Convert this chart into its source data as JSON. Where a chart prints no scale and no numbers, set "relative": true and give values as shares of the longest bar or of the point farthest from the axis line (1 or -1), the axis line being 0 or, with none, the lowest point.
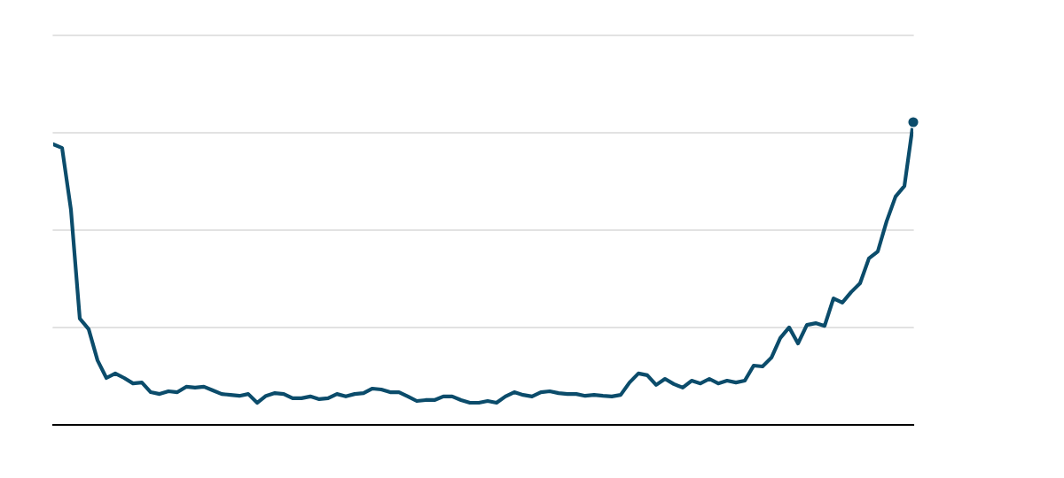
{
  "chart_data": {
    "type": "line",
    "relative": true,
    "categories": [
      null,
      null,
      null,
      null,
      null,
      null,
      null,
      null,
      null,
      null,
      null,
      null,
      null,
      null,
      null,
      null,
      null,
      null,
      null,
      null,
      null,
      null,
      null,
      null,
      null,
      null,
      null,
      null,
      null,
      null,
      null,
      null,
      null,
      null,
      null,
      null,
      null,
      null,
      null,
      null,
      null,
      null,
      null,
      null,
      null,
      null,
      null,
      null,
      null,
      null,
      null,
      null,
      null,
      null,
      null,
      null,
      null,
      null,
      null,
      null,
      null,
      null,
      null,
      null,
      null,
      null,
      null,
      null,
      null,
      null,
      null,
      null,
      null,
      null,
      null,
      null,
      null,
      null,
      null,
      null,
      null,
      null,
      null,
      null,
      null,
      null,
      null,
      null,
      null,
      null,
      null,
      null,
      null,
      null,
      null,
      null,
      null,
      null
    ],
    "grid": "y",
    "series": [
      {
        "color": "#0b4c6b",
        "values": [
          0.927,
          0.915,
          0.711,
          0.351,
          0.316,
          0.213,
          0.155,
          0.17,
          0.155,
          0.137,
          0.14,
          0.108,
          0.102,
          0.111,
          0.108,
          0.126,
          0.123,
          0.126,
          0.114,
          0.102,
          0.099,
          0.096,
          0.102,
          0.073,
          0.096,
          0.105,
          0.102,
          0.088,
          0.088,
          0.094,
          0.085,
          0.088,
          0.102,
          0.094,
          0.102,
          0.105,
          0.12,
          0.117,
          0.108,
          0.108,
          0.094,
          0.079,
          0.082,
          0.082,
          0.094,
          0.094,
          0.082,
          0.073,
          0.073,
          0.079,
          0.073,
          0.094,
          0.108,
          0.099,
          0.094,
          0.108,
          0.111,
          0.105,
          0.102,
          0.102,
          0.096,
          0.099,
          0.096,
          0.094,
          0.099,
          0.14,
          0.17,
          0.164,
          0.132,
          0.152,
          0.135,
          0.123,
          0.146,
          0.137,
          0.152,
          0.137,
          0.146,
          0.14,
          0.146,
          0.196,
          0.193,
          0.222,
          0.287,
          0.322,
          0.269,
          0.33,
          0.336,
          0.327,
          0.418,
          0.404,
          0.439,
          0.468,
          0.55,
          0.573,
          0.673,
          0.754,
          0.789,
          1
        ]
      }
    ]
  }
}
